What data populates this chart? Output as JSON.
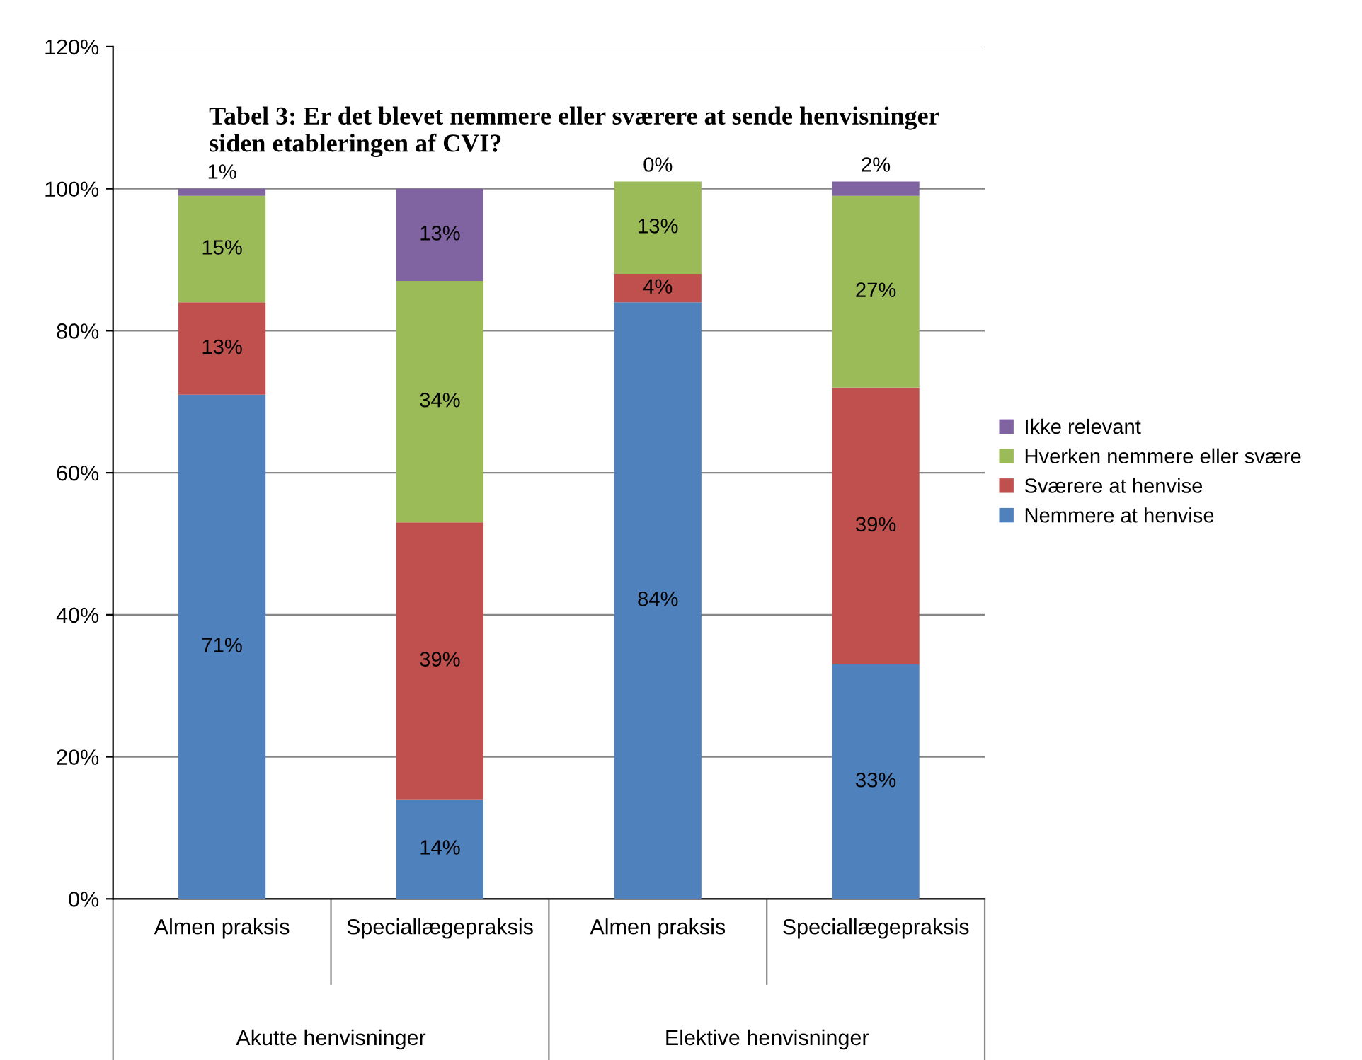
{
  "chart_data": {
    "type": "bar",
    "stacked": true,
    "title": "Tabel 3: Er det blevet nemmere eller sværere at sende henvisninger\nsiden etableringen af CVI?",
    "categories": [
      "Almen praksis",
      "Speciallægepraksis",
      "Almen praksis",
      "Speciallægepraksis"
    ],
    "annotations": [
      "Akutte henvisninger",
      "Elektive henvisninger"
    ],
    "series": [
      {
        "name": "Nemmere at henvise",
        "color": "#4f81bd",
        "values": [
          71,
          14,
          84,
          33
        ],
        "value_labels": [
          "71%",
          "14%",
          "84%",
          "33%"
        ]
      },
      {
        "name": "Sværere at henvise",
        "color": "#c0504d",
        "values": [
          13,
          39,
          4,
          39
        ],
        "value_labels": [
          "13%",
          "39%",
          "4%",
          "39%"
        ]
      },
      {
        "name": "Hverken nemmere eller svære",
        "color": "#9bbb59",
        "values": [
          15,
          34,
          13,
          27
        ],
        "value_labels": [
          "15%",
          "34%",
          "13%",
          "27%"
        ]
      },
      {
        "name": "Ikke relevant",
        "color": "#8064a2",
        "values": [
          1,
          13,
          0,
          2
        ],
        "value_labels": [
          "1%",
          "13%",
          "0%",
          "2%"
        ]
      }
    ],
    "ylim": [
      0,
      120
    ],
    "yticks": [
      {
        "value": 0,
        "label": "0%"
      },
      {
        "value": 20,
        "label": "20%"
      },
      {
        "value": 40,
        "label": "40%"
      },
      {
        "value": 60,
        "label": "60%"
      },
      {
        "value": 80,
        "label": "80%"
      },
      {
        "value": 100,
        "label": "100%"
      },
      {
        "value": 120,
        "label": "120%"
      }
    ],
    "grid": "y",
    "legend": "right"
  }
}
